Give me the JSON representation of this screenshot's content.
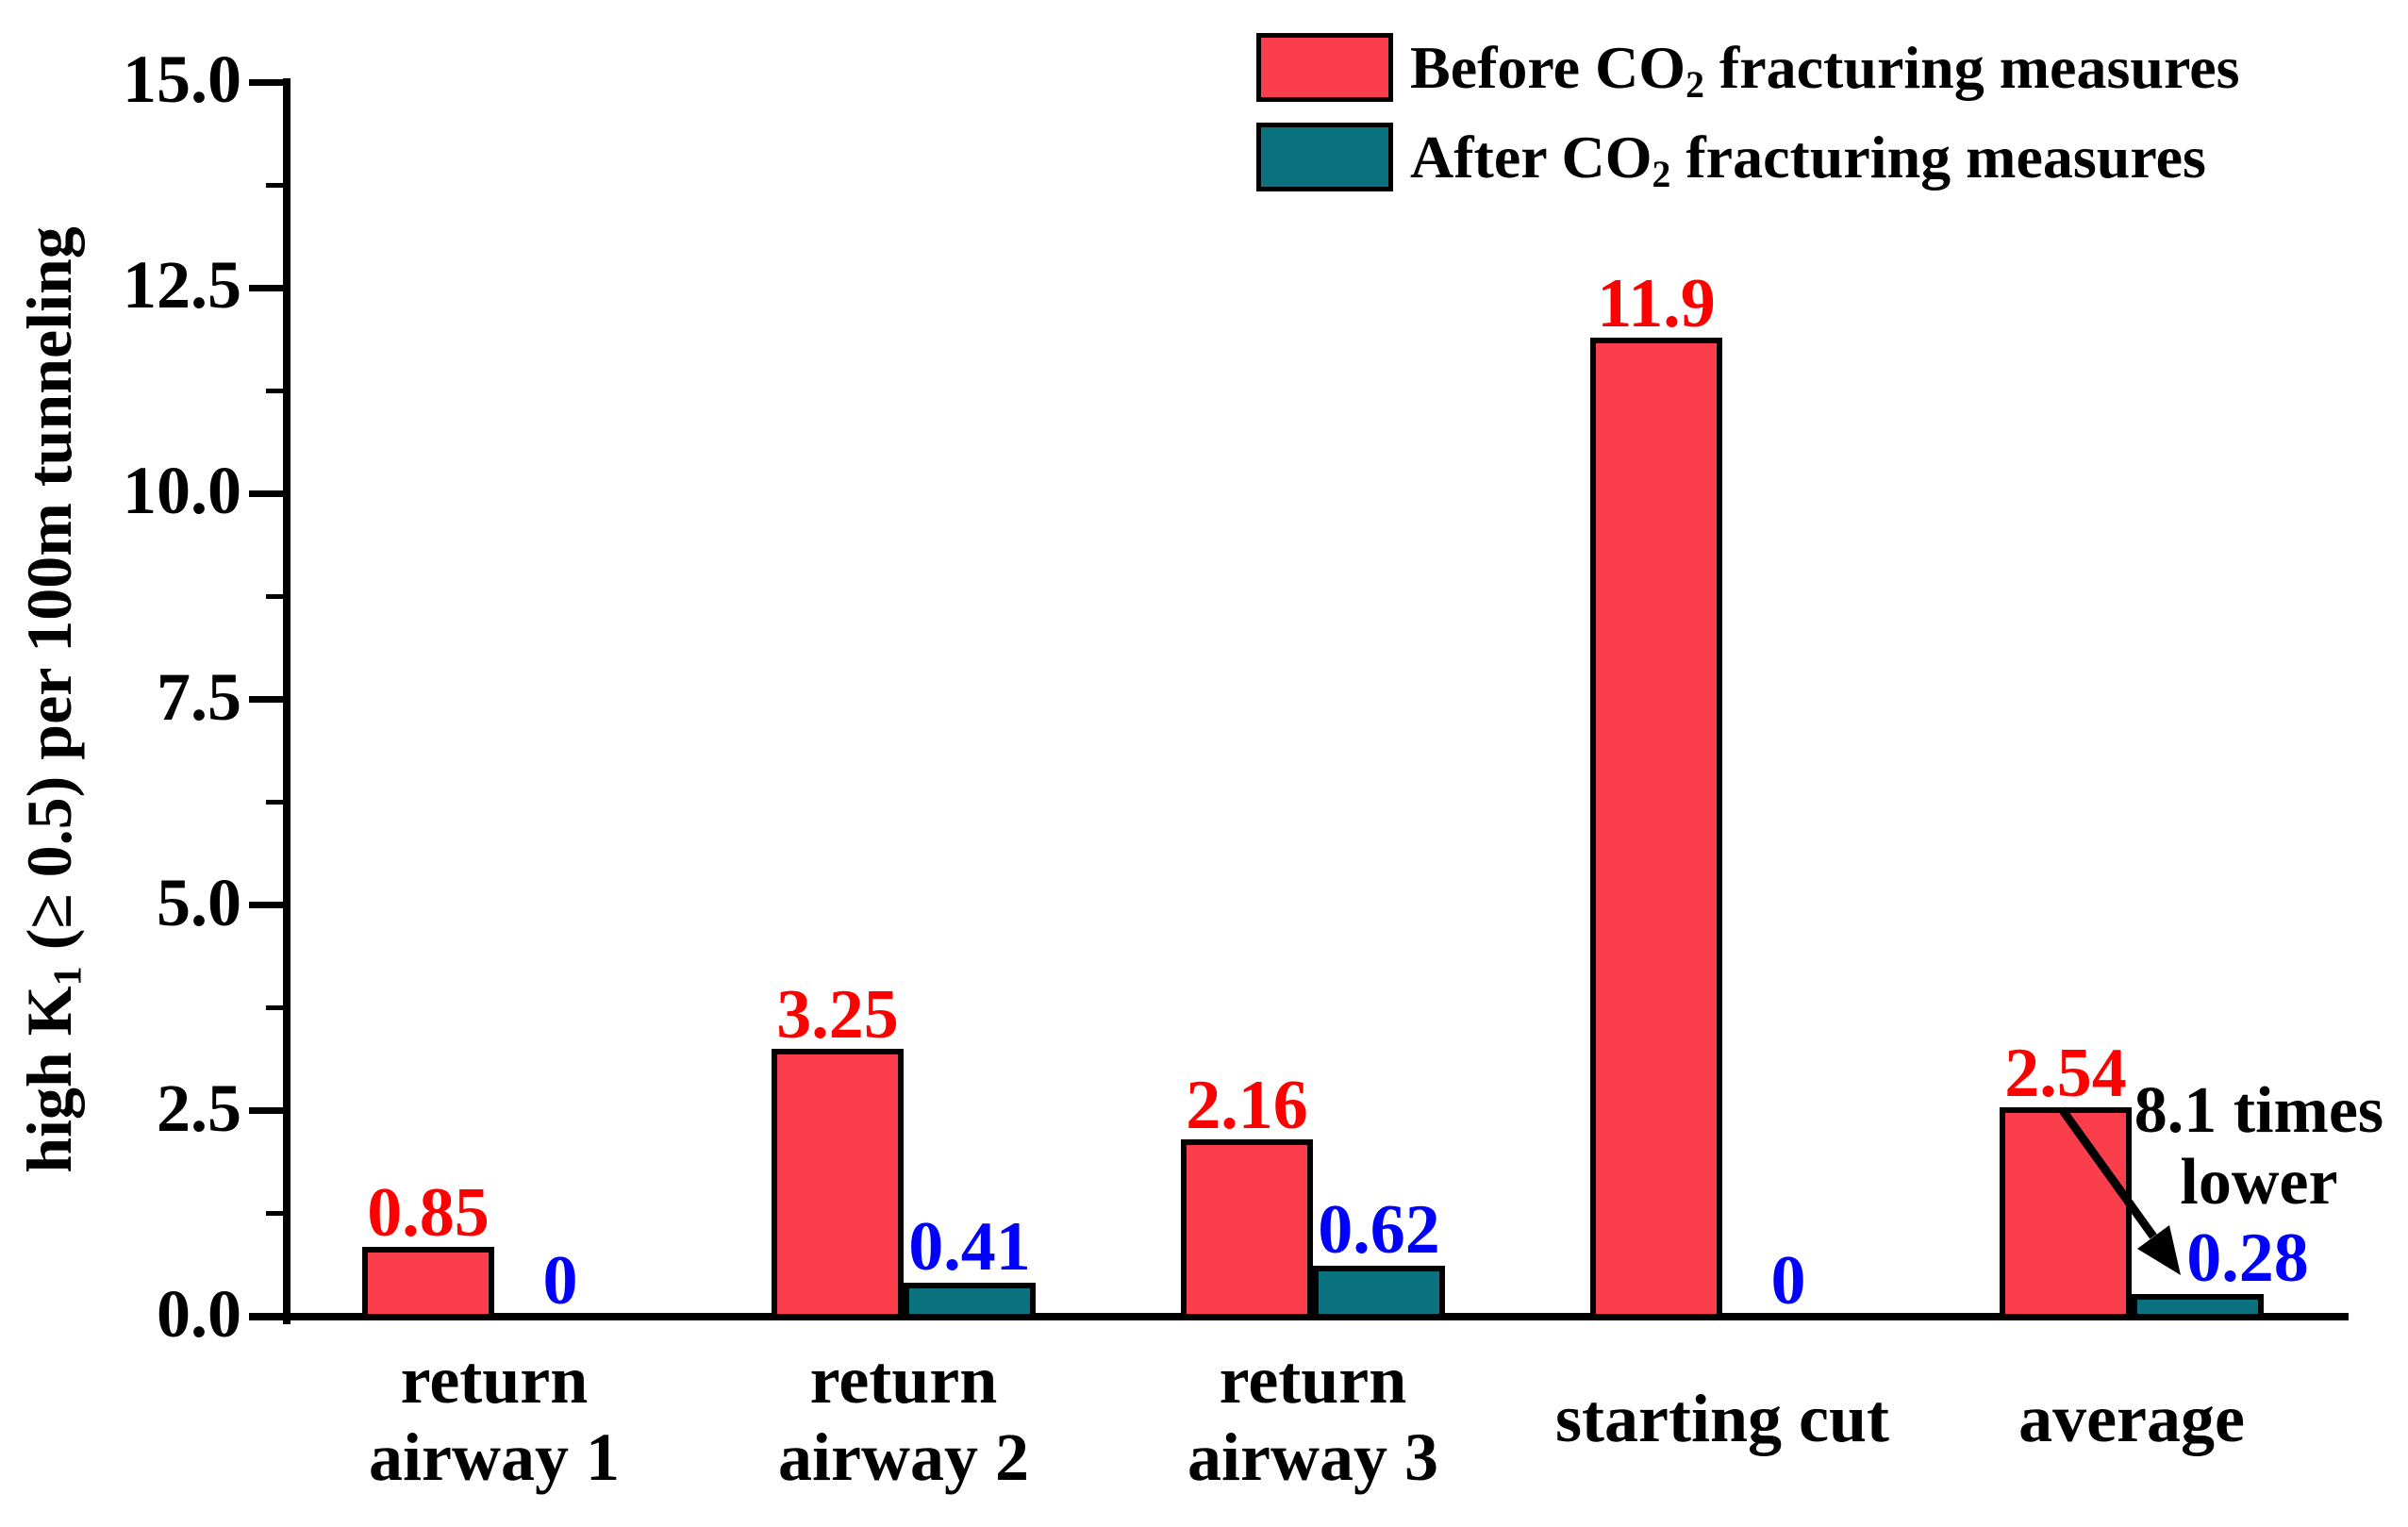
{
  "figure": {
    "description": "grouped bar chart comparing gas index before and after CO2 fracturing",
    "background": "#ffffff"
  },
  "y_axis": {
    "label_pre": "high K",
    "label_sub": "1",
    "label_post": " (≥ 0.5) per 100m tunneling",
    "ticks": [
      {
        "label": "0.0",
        "value": 0
      },
      {
        "label": "2.5",
        "value": 2.5
      },
      {
        "label": "5.0",
        "value": 5
      },
      {
        "label": "7.5",
        "value": 7.5
      },
      {
        "label": "10.0",
        "value": 10
      },
      {
        "label": "12.5",
        "value": 12.5
      },
      {
        "label": "15.0",
        "value": 15
      }
    ],
    "range": [
      0,
      15
    ]
  },
  "legend": {
    "items": [
      {
        "pre": "Before CO",
        "sub": "2",
        "post": " fracturing measures",
        "color": "#fa3e4b"
      },
      {
        "pre": "After CO",
        "sub": "2",
        "post": " fracturing measures",
        "color": "#0a727e"
      }
    ]
  },
  "annotation": {
    "line1": "8.1 times",
    "line2": "lower"
  },
  "colors": {
    "before": "#fa3e4b",
    "after": "#0a727e",
    "before_label": "#ff0000",
    "after_label": "#0000ff",
    "axis": "#000000"
  },
  "chart_data": {
    "type": "bar",
    "categories": [
      "return airway 1",
      "return airway 2",
      "return airway 3",
      "starting cut",
      "average"
    ],
    "category_lines": [
      [
        "return",
        "airway 1"
      ],
      [
        "return",
        "airway 2"
      ],
      [
        "return",
        "airway 3"
      ],
      [
        "starting cut"
      ],
      [
        "average"
      ]
    ],
    "series": [
      {
        "name": "Before CO2 fracturing measures",
        "color": "#fa3e4b",
        "label_color": "#ff0000",
        "values": [
          0.85,
          3.25,
          2.16,
          11.9,
          2.54
        ],
        "value_labels": [
          "0.85",
          "3.25",
          "2.16",
          "11.9",
          "2.54"
        ]
      },
      {
        "name": "After CO2 fracturing measures",
        "color": "#0a727e",
        "label_color": "#0000ff",
        "values": [
          0,
          0.41,
          0.62,
          0,
          0.28
        ],
        "value_labels": [
          "0",
          "0.41",
          "0.62",
          "0",
          "0.28"
        ]
      }
    ],
    "title": "",
    "xlabel": "",
    "ylabel": "high K1 (≥ 0.5) per 100m tunneling",
    "ylim": [
      0,
      15
    ],
    "grid": false,
    "legend_position": "top-right",
    "annotation_text": "8.1 times lower"
  }
}
